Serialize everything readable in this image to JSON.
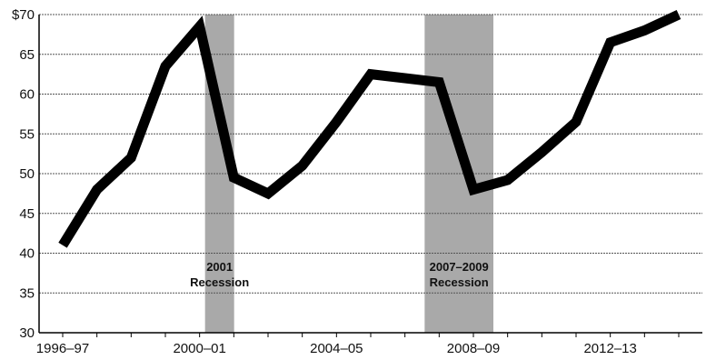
{
  "chart_data": {
    "type": "line",
    "title": "",
    "xlabel": "",
    "ylabel": "",
    "x": [
      "1996–97",
      "1997–98",
      "1998–99",
      "1999–2000",
      "2000–01",
      "2001–02",
      "2002–03",
      "2003–04",
      "2004–05",
      "2005–06",
      "2006–07",
      "2007–08",
      "2008–09",
      "2009–10",
      "2010–11",
      "2011–12",
      "2012–13",
      "2013–14",
      "2014–15"
    ],
    "series": [
      {
        "values": [
          41,
          48,
          52,
          63.5,
          68.5,
          49.5,
          47.5,
          51,
          56.5,
          62.5,
          62,
          61.5,
          48,
          49.2,
          52.7,
          56.5,
          66.5,
          68,
          70
        ]
      }
    ],
    "ylim": [
      30,
      70
    ],
    "yticks": [
      30,
      35,
      40,
      45,
      50,
      55,
      60,
      65,
      70
    ],
    "ytick_labels": [
      "30",
      "35",
      "40",
      "45",
      "50",
      "55",
      "60",
      "65",
      "$70"
    ],
    "xtick_labels": [
      "1996–97",
      "2000–01",
      "2004–05",
      "2008–09",
      "2012–13"
    ],
    "xtick_positions": [
      "1996–97",
      "2000–01",
      "2004–05",
      "2008–09",
      "2012–13"
    ],
    "grid": true,
    "recessions": [
      {
        "label_line1": "2001",
        "label_line2": "Recession",
        "start": "2000–01",
        "end": "2000–01"
      },
      {
        "label_line1": "2007–2009",
        "label_line2": "Recession",
        "start": "2007–08",
        "end": "2008–09"
      }
    ],
    "colors": {
      "line": "#000000",
      "grid": "#555555",
      "recession_fill": "#9a9a9a",
      "text": "#111111"
    }
  }
}
